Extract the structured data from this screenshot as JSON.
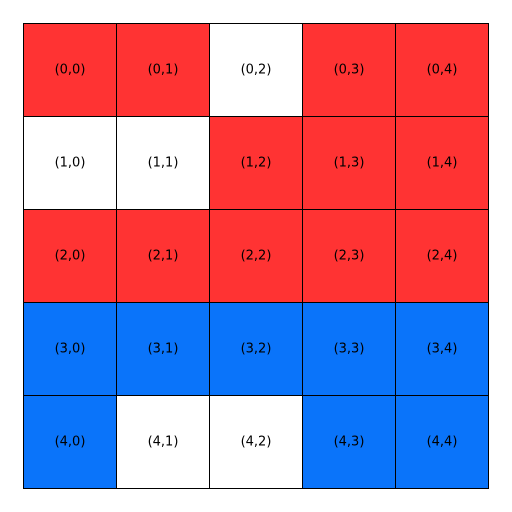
{
  "grid": {
    "rows": [
      [
        {
          "label": "(0,0)",
          "color": "#ff3333"
        },
        {
          "label": "(0,1)",
          "color": "#ff3333"
        },
        {
          "label": "(0,2)",
          "color": "#ffffff"
        },
        {
          "label": "(0,3)",
          "color": "#ff3333"
        },
        {
          "label": "(0,4)",
          "color": "#ff3333"
        }
      ],
      [
        {
          "label": "(1,0)",
          "color": "#ffffff"
        },
        {
          "label": "(1,1)",
          "color": "#ffffff"
        },
        {
          "label": "(1,2)",
          "color": "#ff3333"
        },
        {
          "label": "(1,3)",
          "color": "#ff3333"
        },
        {
          "label": "(1,4)",
          "color": "#ff3333"
        }
      ],
      [
        {
          "label": "(2,0)",
          "color": "#ff3333"
        },
        {
          "label": "(2,1)",
          "color": "#ff3333"
        },
        {
          "label": "(2,2)",
          "color": "#ff3333"
        },
        {
          "label": "(2,3)",
          "color": "#ff3333"
        },
        {
          "label": "(2,4)",
          "color": "#ff3333"
        }
      ],
      [
        {
          "label": "(3,0)",
          "color": "#0a74fa"
        },
        {
          "label": "(3,1)",
          "color": "#0a74fa"
        },
        {
          "label": "(3,2)",
          "color": "#0a74fa"
        },
        {
          "label": "(3,3)",
          "color": "#0a74fa"
        },
        {
          "label": "(3,4)",
          "color": "#0a74fa"
        }
      ],
      [
        {
          "label": "(4,0)",
          "color": "#0a74fa"
        },
        {
          "label": "(4,1)",
          "color": "#ffffff"
        },
        {
          "label": "(4,2)",
          "color": "#ffffff"
        },
        {
          "label": "(4,3)",
          "color": "#0a74fa"
        },
        {
          "label": "(4,4)",
          "color": "#0a74fa"
        }
      ]
    ]
  }
}
